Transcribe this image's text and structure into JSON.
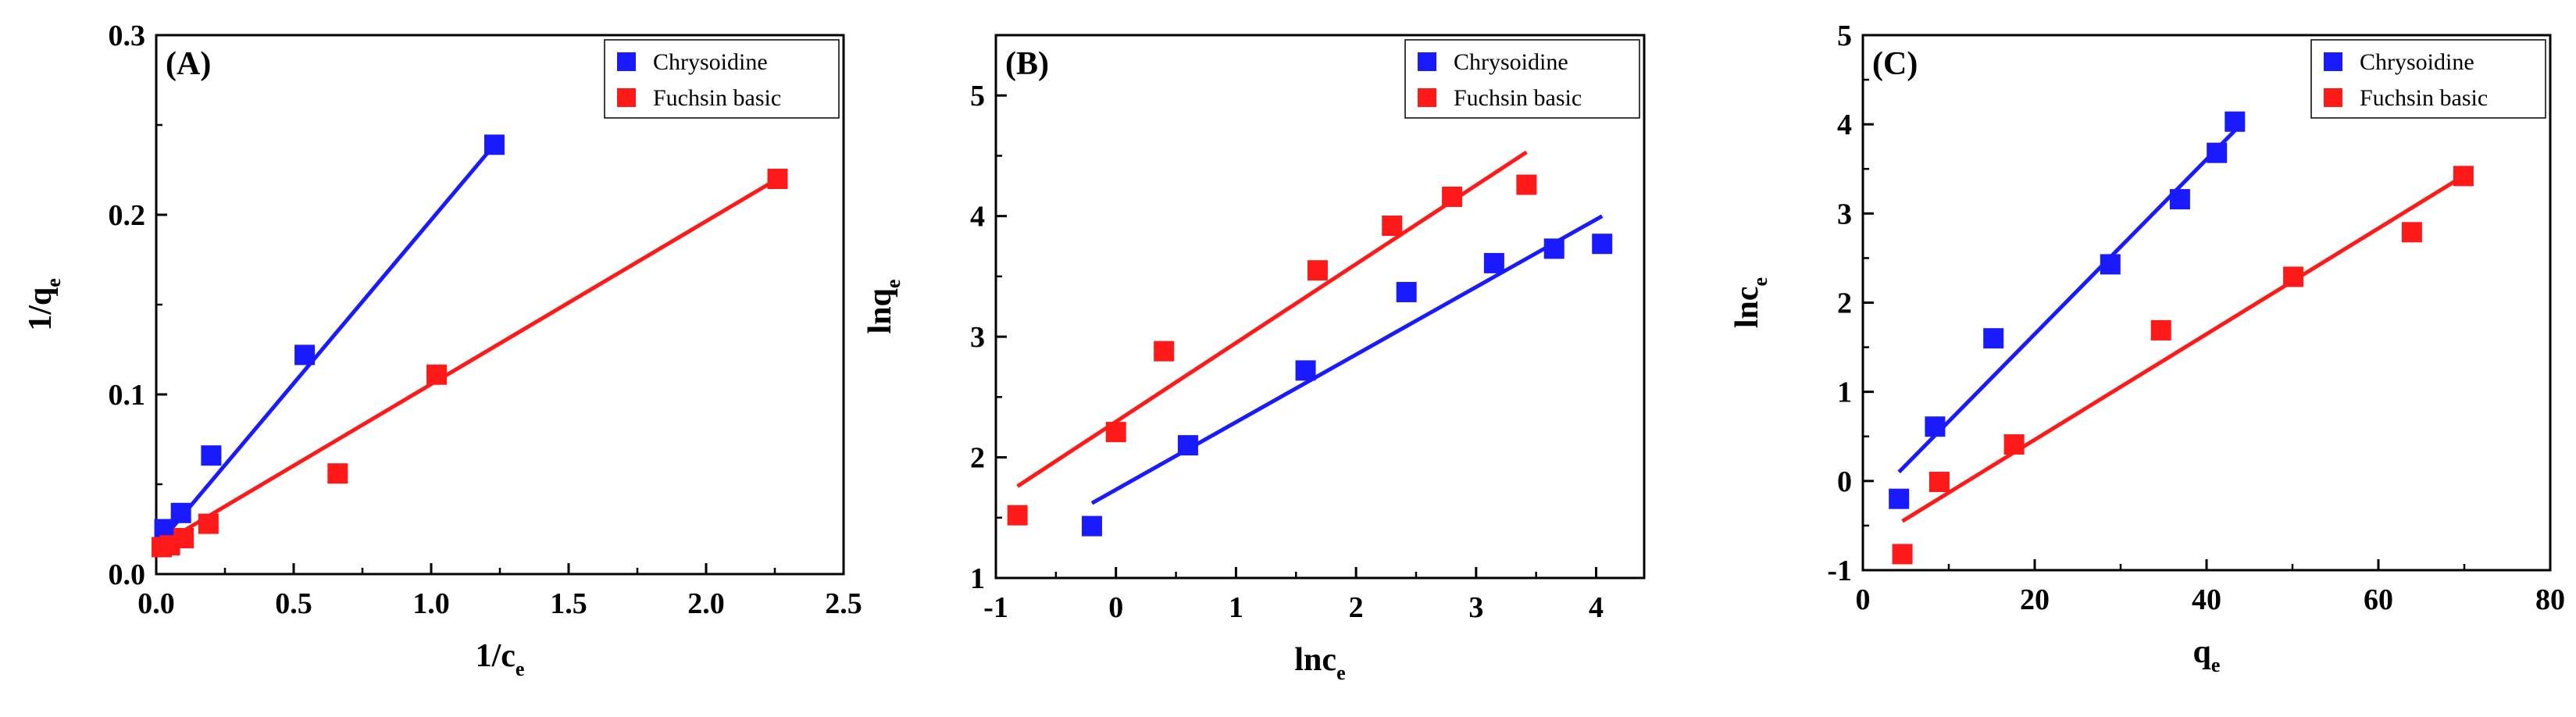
{
  "colors": {
    "chrysoidine": "#1a1aff",
    "fuchsin": "#ff1a1a",
    "axis": "#000000"
  },
  "chart_data": [
    {
      "type": "scatter",
      "panel": "(A)",
      "xlabel": "1/c",
      "xlabel_sub": "e",
      "ylabel": "1/q",
      "ylabel_sub": "e",
      "xlim": [
        0,
        2.5
      ],
      "ylim": [
        0,
        0.3
      ],
      "xticks": [
        {
          "v": 0,
          "t": "0.0"
        },
        {
          "v": 0.5,
          "t": "0.5"
        },
        {
          "v": 1,
          "t": "1.0"
        },
        {
          "v": 1.5,
          "t": "1.5"
        },
        {
          "v": 2,
          "t": "2.0"
        },
        {
          "v": 2.5,
          "t": "2.5"
        }
      ],
      "yticks": [
        {
          "v": 0,
          "t": "0.0"
        },
        {
          "v": 0.1,
          "t": "0.1"
        },
        {
          "v": 0.2,
          "t": "0.2"
        },
        {
          "v": 0.3,
          "t": "0.3"
        }
      ],
      "legend_position": "top-right",
      "series": [
        {
          "name": "Chrysoidine",
          "color_key": "chrysoidine",
          "points": [
            [
              0.03,
              0.025
            ],
            [
              0.09,
              0.034
            ],
            [
              0.2,
              0.066
            ],
            [
              0.54,
              0.122
            ],
            [
              1.23,
              0.239
            ]
          ],
          "fit": [
            [
              0.01,
              0.017
            ],
            [
              1.23,
              0.239
            ]
          ]
        },
        {
          "name": "Fuchsin basic",
          "color_key": "fuchsin",
          "points": [
            [
              0.02,
              0.015
            ],
            [
              0.05,
              0.016
            ],
            [
              0.1,
              0.02
            ],
            [
              0.19,
              0.028
            ],
            [
              0.66,
              0.056
            ],
            [
              1.02,
              0.111
            ],
            [
              2.26,
              0.22
            ]
          ],
          "fit": [
            [
              0.0,
              0.015
            ],
            [
              2.26,
              0.22
            ]
          ]
        }
      ]
    },
    {
      "type": "scatter",
      "panel": "(B)",
      "xlabel": "lnc",
      "xlabel_sub": "e",
      "ylabel": "lnq",
      "ylabel_sub": "e",
      "xlim": [
        -1,
        4.4
      ],
      "ylim": [
        1,
        5.5
      ],
      "xticks": [
        {
          "v": -1,
          "t": "-1"
        },
        {
          "v": 0,
          "t": "0"
        },
        {
          "v": 1,
          "t": "1"
        },
        {
          "v": 2,
          "t": "2"
        },
        {
          "v": 3,
          "t": "3"
        },
        {
          "v": 4,
          "t": "4"
        }
      ],
      "yticks": [
        {
          "v": 1,
          "t": "1"
        },
        {
          "v": 2,
          "t": "2"
        },
        {
          "v": 3,
          "t": "3"
        },
        {
          "v": 4,
          "t": "4"
        },
        {
          "v": 5,
          "t": "5"
        }
      ],
      "legend_position": "top-right",
      "series": [
        {
          "name": "Chrysoidine",
          "color_key": "chrysoidine",
          "points": [
            [
              -0.2,
              1.43
            ],
            [
              0.6,
              2.1
            ],
            [
              1.58,
              2.72
            ],
            [
              2.42,
              3.37
            ],
            [
              3.15,
              3.61
            ],
            [
              3.65,
              3.73
            ],
            [
              4.05,
              3.77
            ]
          ],
          "fit": [
            [
              -0.2,
              1.62
            ],
            [
              4.05,
              4.0
            ]
          ]
        },
        {
          "name": "Fuchsin basic",
          "color_key": "fuchsin",
          "points": [
            [
              -0.82,
              1.52
            ],
            [
              0.0,
              2.21
            ],
            [
              0.4,
              2.88
            ],
            [
              1.68,
              3.55
            ],
            [
              2.3,
              3.92
            ],
            [
              2.8,
              4.16
            ],
            [
              3.42,
              4.26
            ]
          ],
          "fit": [
            [
              -0.82,
              1.76
            ],
            [
              3.42,
              4.53
            ]
          ]
        }
      ]
    },
    {
      "type": "scatter",
      "panel": "(C)",
      "xlabel": "q",
      "xlabel_sub": "e",
      "ylabel": "lnc",
      "ylabel_sub": "e",
      "xlim": [
        0,
        80
      ],
      "ylim": [
        -1,
        5
      ],
      "xticks": [
        {
          "v": 0,
          "t": "0"
        },
        {
          "v": 20,
          "t": "20"
        },
        {
          "v": 40,
          "t": "40"
        },
        {
          "v": 60,
          "t": "60"
        },
        {
          "v": 80,
          "t": "80"
        }
      ],
      "yticks": [
        {
          "v": -1,
          "t": "-1"
        },
        {
          "v": 0,
          "t": "0"
        },
        {
          "v": 1,
          "t": "1"
        },
        {
          "v": 2,
          "t": "2"
        },
        {
          "v": 3,
          "t": "3"
        },
        {
          "v": 4,
          "t": "4"
        },
        {
          "v": 5,
          "t": "5"
        }
      ],
      "legend_position": "top-right",
      "series": [
        {
          "name": "Chrysoidine",
          "color_key": "chrysoidine",
          "points": [
            [
              4.2,
              -0.2
            ],
            [
              8.4,
              0.61
            ],
            [
              15.2,
              1.6
            ],
            [
              28.8,
              2.43
            ],
            [
              36.9,
              3.16
            ],
            [
              41.2,
              3.68
            ],
            [
              43.3,
              4.03
            ]
          ],
          "fit": [
            [
              4.2,
              0.1
            ],
            [
              43.3,
              3.93
            ]
          ]
        },
        {
          "name": "Fuchsin basic",
          "color_key": "fuchsin",
          "points": [
            [
              4.6,
              -0.82
            ],
            [
              8.9,
              -0.01
            ],
            [
              17.6,
              0.41
            ],
            [
              34.7,
              1.69
            ],
            [
              50.1,
              2.29
            ],
            [
              63.9,
              2.79
            ],
            [
              69.9,
              3.42
            ]
          ],
          "fit": [
            [
              4.6,
              -0.45
            ],
            [
              69.9,
              3.42
            ]
          ]
        }
      ]
    }
  ]
}
